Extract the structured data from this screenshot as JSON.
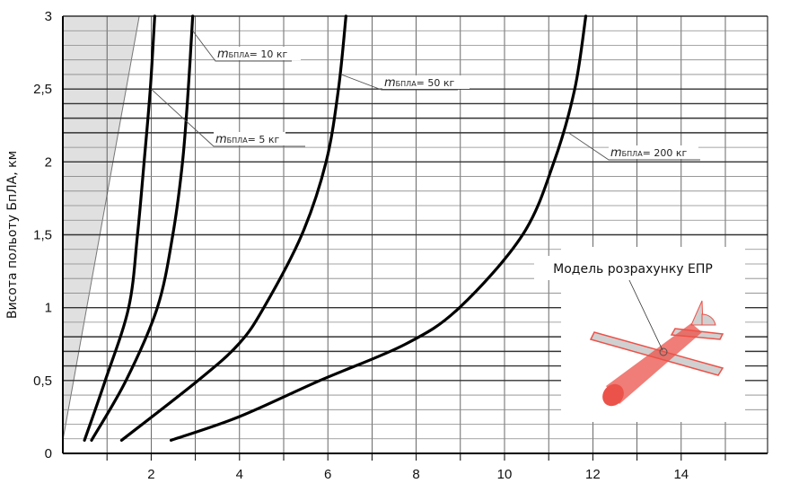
{
  "chart_data": {
    "type": "line",
    "title": "",
    "xlabel": "",
    "ylabel": "Висота польоту БпЛА, км",
    "xlim": [
      0,
      16
    ],
    "ylim": [
      0,
      3
    ],
    "x_ticks": [
      "2",
      "4",
      "6",
      "8",
      "10",
      "12",
      "14"
    ],
    "x_tick_values": [
      2,
      4,
      6,
      8,
      10,
      12,
      14
    ],
    "y_ticks": [
      "0",
      "0,5",
      "1",
      "1,5",
      "2",
      "2,5",
      "3"
    ],
    "y_tick_values": [
      0,
      0.5,
      1,
      1.5,
      2,
      2.5,
      3
    ],
    "grid": true,
    "shaded_region_boundary": [
      [
        0,
        0.09
      ],
      [
        1.73,
        3
      ]
    ],
    "series": [
      {
        "name": "5 кг",
        "label_prefix": "m",
        "label_sub": "БПЛА",
        "label_suffix": "= 5 кг",
        "x": [
          0.49,
          0.96,
          1.49,
          1.69,
          1.84,
          1.98,
          2.08
        ],
        "y": [
          0.09,
          0.5,
          1,
          1.5,
          2,
          2.5,
          3
        ]
      },
      {
        "name": "10 кг",
        "label_prefix": "m",
        "label_sub": "БПЛА",
        "label_suffix": "= 10 кг",
        "x": [
          0.65,
          1.43,
          2.14,
          2.49,
          2.71,
          2.84,
          2.94
        ],
        "y": [
          0.09,
          0.5,
          1,
          1.5,
          2,
          2.5,
          3
        ]
      },
      {
        "name": "50 кг",
        "label_prefix": "m",
        "label_sub": "БПЛА",
        "label_suffix": "= 50 кг",
        "x": [
          1.33,
          3.06,
          3.98,
          4.55,
          5.41,
          5.96,
          6.24,
          6.41
        ],
        "y": [
          0.09,
          0.5,
          0.75,
          1,
          1.5,
          2,
          2.5,
          3
        ]
      },
      {
        "name": "200 кг",
        "label_prefix": "m",
        "label_sub": "БПЛА",
        "label_suffix": "= 200 кг",
        "x": [
          2.45,
          3.98,
          5.82,
          7.76,
          8.98,
          10.41,
          11.12,
          11.59,
          11.84
        ],
        "y": [
          0.09,
          0.25,
          0.5,
          0.75,
          1,
          1.5,
          2,
          2.5,
          3
        ]
      }
    ],
    "colors": {
      "curve": "#000000",
      "grid": "#444444",
      "shade": "#e0e0e0",
      "model": "#e8342a"
    }
  },
  "inset": {
    "label": "Модель розрахунку ЕПР"
  }
}
